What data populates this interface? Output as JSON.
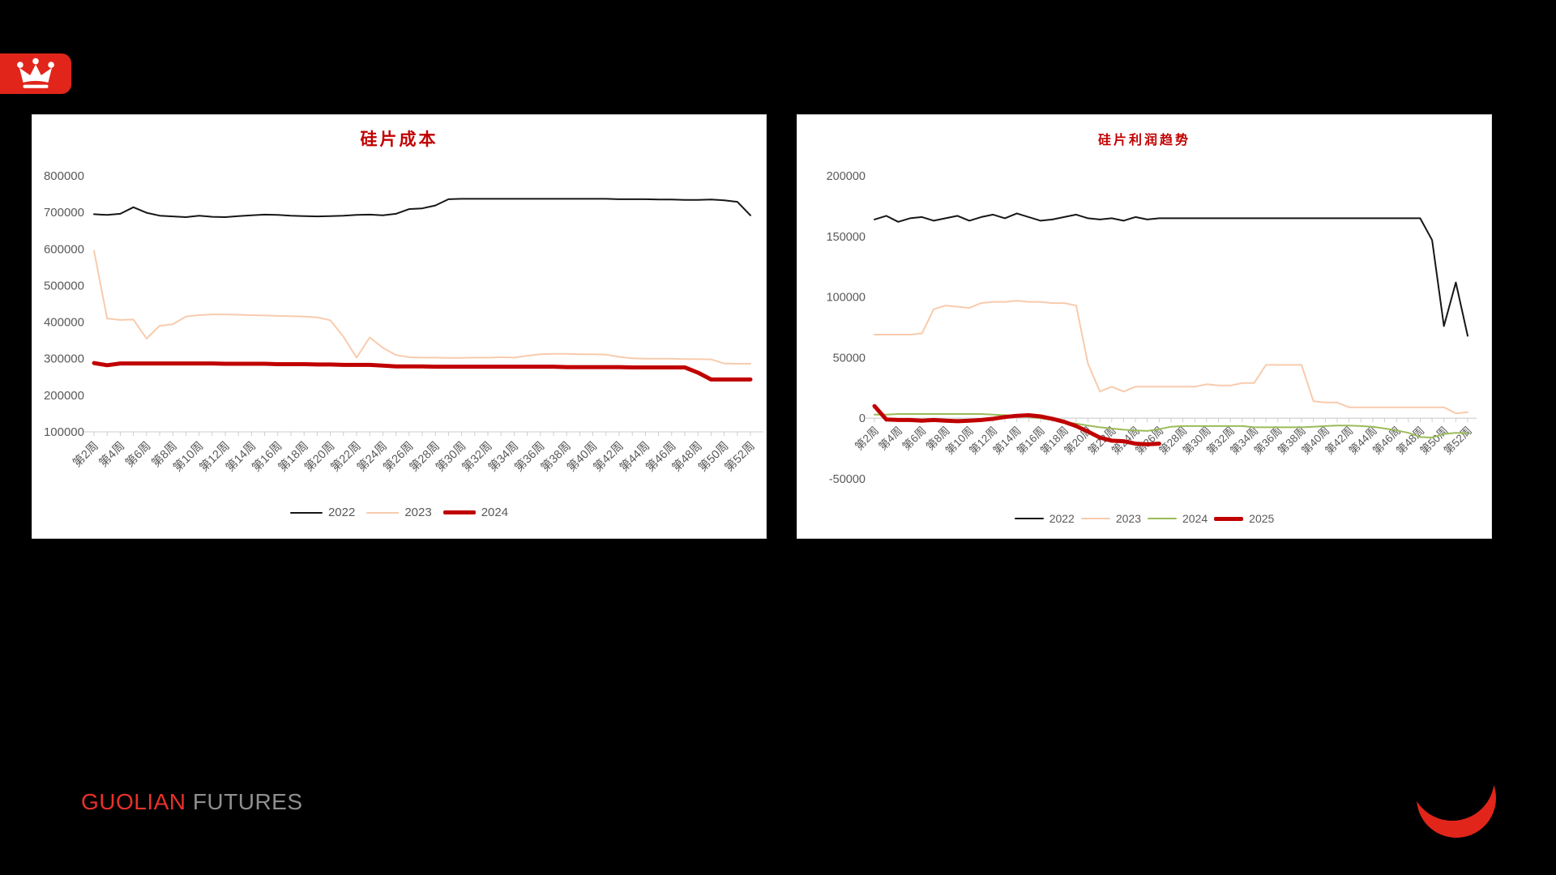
{
  "page": {
    "background": "#000000"
  },
  "header_logo": {
    "label": "crown-badge",
    "color": "#e1251b",
    "glyph_color": "#ffffff"
  },
  "footer": {
    "brand_primary": "GUOLIAN",
    "brand_secondary": "FUTURES",
    "primary_color": "#e8312a",
    "secondary_color": "#8f8f8f",
    "crescent_color": "#e1251b"
  },
  "axis_style": {
    "text_color": "#595959",
    "axis_line_color": "#d6d6d6",
    "tick_color": "#c9c9c9"
  },
  "chart_data": [
    {
      "type": "line",
      "title": "硅片成本",
      "title_color": "#c00000",
      "grid": false,
      "legend_position": "bottom",
      "xlabel": "",
      "ylabel": "",
      "weeks_start": 2,
      "weeks_end": 52,
      "x_tick_labels": [
        "第2周",
        "第4周",
        "第6周",
        "第8周",
        "第10周",
        "第12周",
        "第14周",
        "第16周",
        "第18周",
        "第20周",
        "第22周",
        "第24周",
        "第26周",
        "第28周",
        "第30周",
        "第32周",
        "第34周",
        "第36周",
        "第38周",
        "第40周",
        "第42周",
        "第44周",
        "第46周",
        "第48周",
        "第50周",
        "第52周"
      ],
      "ylim": [
        100000,
        800000
      ],
      "y_step": 100000,
      "y_tick_labels": [
        "800000",
        "700000",
        "600000",
        "500000",
        "400000",
        "300000",
        "200000",
        "100000"
      ],
      "x_axis_cross": 100000,
      "series": [
        {
          "name": "2022",
          "color": "#161616",
          "width": 2,
          "values": [
            695000,
            693000,
            696000,
            714000,
            699000,
            691000,
            689000,
            687000,
            691000,
            688000,
            687000,
            690000,
            692000,
            694000,
            693000,
            691000,
            690000,
            689000,
            690000,
            691000,
            693000,
            694000,
            692000,
            696000,
            709000,
            711000,
            719000,
            736000,
            737000,
            737000,
            737000,
            737000,
            737000,
            737000,
            737000,
            737000,
            737000,
            737000,
            737000,
            737000,
            736000,
            736000,
            736000,
            735000,
            735000,
            734000,
            734000,
            735000,
            733000,
            729000,
            692000
          ]
        },
        {
          "name": "2023",
          "color": "#f8cbad",
          "width": 2,
          "values": [
            595000,
            410000,
            406000,
            407000,
            355000,
            390000,
            394000,
            415000,
            419000,
            421000,
            421000,
            420000,
            419000,
            418000,
            417000,
            416000,
            415000,
            413000,
            405000,
            360000,
            303000,
            358000,
            330000,
            310000,
            304000,
            303000,
            303000,
            302000,
            302000,
            303000,
            303000,
            304000,
            303000,
            308000,
            312000,
            313000,
            313000,
            312000,
            312000,
            311000,
            305000,
            301000,
            300000,
            300000,
            300000,
            299000,
            299000,
            298000,
            287000,
            286000,
            286000
          ]
        },
        {
          "name": "2024",
          "color": "#c00000",
          "width": 5,
          "values": [
            288000,
            282000,
            287000,
            287000,
            287000,
            287000,
            287000,
            287000,
            287000,
            287000,
            286000,
            286000,
            286000,
            286000,
            285000,
            285000,
            285000,
            284000,
            284000,
            283000,
            283000,
            283000,
            281000,
            279000,
            279000,
            279000,
            278000,
            278000,
            278000,
            278000,
            278000,
            278000,
            278000,
            278000,
            278000,
            278000,
            277000,
            277000,
            277000,
            277000,
            277000,
            276000,
            276000,
            276000,
            276000,
            276000,
            262000,
            243000,
            243000,
            243000,
            243000
          ]
        }
      ]
    },
    {
      "type": "line",
      "title": "硅片利润趋势",
      "title_color": "#c00000",
      "grid": false,
      "legend_position": "bottom",
      "xlabel": "",
      "ylabel": "",
      "weeks_start": 2,
      "weeks_end": 52,
      "x_tick_labels": [
        "第2周",
        "第4周",
        "第6周",
        "第8周",
        "第10周",
        "第12周",
        "第14周",
        "第16周",
        "第18周",
        "第20周",
        "第22周",
        "第24周",
        "第26周",
        "第28周",
        "第30周",
        "第32周",
        "第34周",
        "第36周",
        "第38周",
        "第40周",
        "第42周",
        "第44周",
        "第46周",
        "第48周",
        "第50周",
        "第52周"
      ],
      "ylim": [
        -50000,
        200000
      ],
      "y_step": 50000,
      "y_tick_labels": [
        "200000",
        "150000",
        "100000",
        "50000",
        "0",
        "-50000"
      ],
      "x_axis_cross": 0,
      "series": [
        {
          "name": "2022",
          "color": "#161616",
          "width": 2,
          "values": [
            164000,
            167000,
            162000,
            165000,
            166000,
            163000,
            165000,
            167000,
            163000,
            166000,
            168000,
            165000,
            169000,
            166000,
            163000,
            164000,
            166000,
            168000,
            165000,
            164000,
            165000,
            163000,
            166000,
            164000,
            165000,
            165000,
            165000,
            165000,
            165000,
            165000,
            165000,
            165000,
            165000,
            165000,
            165000,
            165000,
            165000,
            165000,
            165000,
            165000,
            165000,
            165000,
            165000,
            165000,
            165000,
            165000,
            165000,
            147000,
            76000,
            112000,
            68000
          ]
        },
        {
          "name": "2023",
          "color": "#f8cbad",
          "width": 2,
          "values": [
            69000,
            69000,
            69000,
            69000,
            70000,
            90000,
            93000,
            92000,
            91000,
            95000,
            96000,
            96000,
            97000,
            96000,
            96000,
            95000,
            95000,
            93000,
            45000,
            22000,
            26000,
            22000,
            26000,
            26000,
            26000,
            26000,
            26000,
            26000,
            28000,
            27000,
            27000,
            29000,
            29000,
            44000,
            44000,
            44000,
            44000,
            14000,
            13000,
            13000,
            9000,
            9000,
            9000,
            9000,
            9000,
            9000,
            9000,
            9000,
            9000,
            4000,
            5000
          ]
        },
        {
          "name": "2024",
          "color": "#9bbb59",
          "width": 2,
          "values": [
            3000,
            3000,
            3500,
            3500,
            3500,
            3500,
            3500,
            3500,
            3500,
            3500,
            3000,
            2500,
            2000,
            1000,
            0,
            -1500,
            -3000,
            -4500,
            -6000,
            -7500,
            -8500,
            -9500,
            -10000,
            -10500,
            -9000,
            -7000,
            -6500,
            -6500,
            -6500,
            -6500,
            -6500,
            -6500,
            -7500,
            -7500,
            -7500,
            -7500,
            -7500,
            -7000,
            -6500,
            -6000,
            -6000,
            -6500,
            -7000,
            -8500,
            -10000,
            -12000,
            -15500,
            -16000,
            -13000,
            -12000,
            -12500
          ]
        },
        {
          "name": "2025",
          "color": "#c00000",
          "width": 5,
          "values": [
            10000,
            -1000,
            -1500,
            -1500,
            -2000,
            -1500,
            -2000,
            -2500,
            -2000,
            -1500,
            -500,
            1000,
            2000,
            2500,
            1500,
            -500,
            -3000,
            -6500,
            -11000,
            -16000,
            -18500,
            -19000,
            -21000,
            -21500,
            -21000
          ]
        }
      ]
    }
  ]
}
